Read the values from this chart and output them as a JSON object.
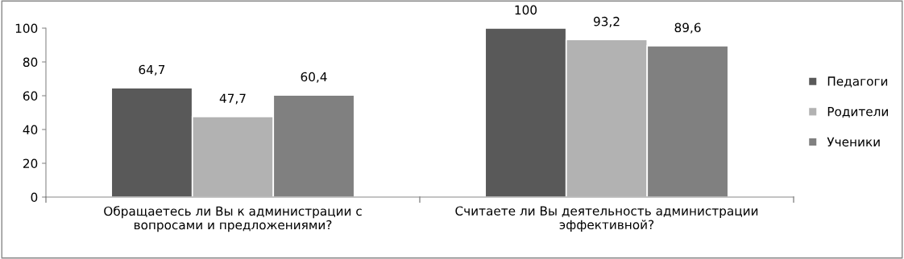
{
  "chart_data": {
    "type": "bar",
    "categories": [
      "Обращаетесь ли Вы к администрации с\nвопросами и предложениями?",
      "Считаете ли Вы деятельность администрации\nэффективной?"
    ],
    "series": [
      {
        "name": "Педагоги",
        "color": "#595959",
        "values": [
          64.7,
          100
        ],
        "value_labels": [
          "64,7",
          "100"
        ]
      },
      {
        "name": "Родители",
        "color": "#b2b2b2",
        "values": [
          47.7,
          93.2
        ],
        "value_labels": [
          "47,7",
          "93,2"
        ]
      },
      {
        "name": "Ученики",
        "color": "#808080",
        "values": [
          60.4,
          89.6
        ],
        "value_labels": [
          "60,4",
          "89,6"
        ]
      }
    ],
    "ylim": [
      0,
      100
    ],
    "yticks": [
      0,
      20,
      40,
      60,
      80,
      100
    ],
    "grid": false,
    "legend": "right"
  }
}
